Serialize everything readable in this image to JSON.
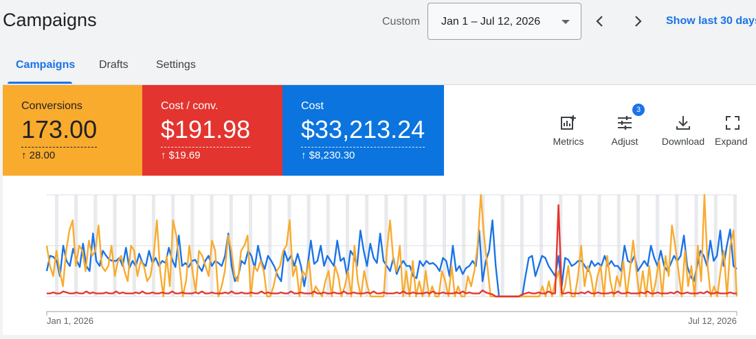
{
  "header": {
    "title": "Campaigns",
    "range_label": "Custom",
    "date_range": "Jan 1 – Jul 12, 2026",
    "show_last": "Show last 30 days"
  },
  "tabs": [
    {
      "label": "Campaigns",
      "active": true
    },
    {
      "label": "Drafts",
      "active": false
    },
    {
      "label": "Settings",
      "active": false
    }
  ],
  "scorecards": {
    "conversions": {
      "label": "Conversions",
      "value": "173.00",
      "delta": "↑ 28.00",
      "color": "#f9ab2e"
    },
    "cost_per_conv": {
      "label": "Cost / conv.",
      "value": "$191.98",
      "delta": "↑ $19.69",
      "color": "#e3342f"
    },
    "cost": {
      "label": "Cost",
      "value": "$33,213.24",
      "delta": "↑ $8,230.30",
      "color": "#0b74de"
    }
  },
  "toolbar": {
    "metrics": "Metrics",
    "adjust": "Adjust",
    "adjust_badge": "3",
    "download": "Download",
    "expand": "Expand"
  },
  "chart_data": {
    "type": "line",
    "x_start": "Jan 1, 2026",
    "x_end": "Jul 12, 2026",
    "grid": true,
    "series": [
      {
        "color": "#1a73e8",
        "values": [
          0.25,
          0.4,
          0.39,
          0.35,
          0.2,
          0.5,
          0.35,
          0.3,
          0.47,
          0.36,
          0.29,
          0.52,
          0.3,
          0.25,
          0.62,
          0.35,
          0.3,
          0.45,
          0.4,
          0.36,
          0.35,
          0.35,
          0.38,
          0.3,
          0.48,
          0.28,
          0.35,
          0.3,
          0.42,
          0.33,
          0.3,
          0.45,
          0.33,
          0.38,
          0.3,
          0.35,
          0.33,
          0.48,
          0.36,
          0.29,
          0.6,
          0.3,
          0.33,
          0.29,
          0.35,
          0.36,
          0.3,
          0.25,
          0.35,
          0.4,
          0.3,
          0.35,
          0.33,
          0.3,
          0.4,
          0.62,
          0.3,
          0.15,
          0.2,
          0.35,
          0.32,
          0.45,
          0.4,
          0.28,
          0.5,
          0.35,
          0.27,
          0.4,
          0.35,
          0.29,
          0.2,
          0.15,
          0.45,
          0.35,
          0.4,
          0.3,
          0.42,
          0.3,
          0.1,
          0.3,
          0.55,
          0.32,
          0.35,
          0.5,
          0.3,
          0.4,
          0.35,
          0.3,
          0.55,
          0.35,
          0.38,
          0.2,
          0.45,
          0.4,
          0.3,
          0.65,
          0.45,
          0.3,
          0.52,
          0.38,
          0.33,
          0.62,
          0.35,
          0.3,
          0.25,
          0.38,
          0.22,
          0.3,
          0.35,
          0.3,
          0.3,
          0.2,
          0.18,
          0.35,
          0.3,
          0.35,
          0.32,
          0.33,
          0.3,
          0.25,
          0.38,
          0.35,
          0.2,
          0.5,
          0.25,
          0.3,
          0.22,
          0.28,
          0.3,
          0.35,
          0.3,
          0.65,
          0.15,
          0.35,
          0.45,
          0.75,
          0.3,
          0.0,
          0.0,
          0.0,
          0.0,
          0.0,
          0.0,
          0.0,
          0.0,
          0.2,
          0.38,
          0.4,
          0.2,
          0.3,
          0.4,
          0.38,
          0.3,
          0.25,
          0.2,
          0.4,
          0.1,
          0.38,
          0.36,
          0.3,
          0.32,
          0.35,
          0.35,
          0.3,
          0.25,
          0.35,
          0.3,
          0.33,
          0.3,
          0.4,
          0.3,
          0.35,
          0.3,
          0.3,
          0.25,
          0.5,
          0.35,
          0.33,
          0.4,
          0.25,
          0.3,
          0.35,
          0.3,
          0.5,
          0.38,
          0.3,
          0.45,
          0.3,
          0.25,
          0.32,
          0.4,
          0.35,
          0.4,
          0.6,
          0.3,
          0.2,
          0.15,
          0.3,
          0.45,
          0.4,
          0.3,
          0.55,
          0.35,
          0.4,
          0.65,
          0.3,
          0.5,
          0.66,
          0.3,
          0.27
        ]
      },
      {
        "color": "#f9ab2e",
        "values": [
          0.5,
          0.3,
          0.2,
          0.45,
          0.25,
          0.1,
          0.45,
          0.65,
          0.75,
          0.3,
          0.5,
          0.45,
          0.25,
          0.55,
          0.4,
          0.45,
          0.7,
          0.3,
          0.25,
          0.3,
          0.5,
          0.2,
          0.35,
          0.4,
          0.25,
          0.15,
          0.5,
          0.45,
          0.2,
          0.35,
          0.3,
          0.15,
          0.2,
          0.4,
          0.75,
          0.25,
          0.0,
          0.4,
          0.1,
          0.75,
          0.6,
          0.3,
          0.0,
          0.15,
          0.5,
          0.25,
          0.05,
          0.45,
          0.4,
          0.3,
          0.2,
          0.55,
          0.45,
          0.0,
          0.1,
          0.25,
          0.6,
          0.45,
          0.2,
          0.15,
          0.45,
          0.5,
          0.6,
          0.0,
          0.3,
          0.25,
          0.35,
          0.25,
          0.0,
          0.0,
          0.1,
          0.25,
          0.3,
          0.45,
          0.5,
          0.75,
          0.2,
          0.3,
          0.0,
          0.25,
          0.2,
          0.35,
          0.0,
          0.1,
          0.05,
          0.0,
          0.15,
          0.25,
          0.0,
          0.3,
          0.2,
          0.0,
          0.1,
          0.25,
          0.0,
          0.5,
          0.15,
          0.0,
          0.25,
          0.1,
          0.0,
          0.0,
          0.0,
          0.0,
          0.0,
          0.45,
          0.75,
          0.35,
          0.25,
          0.5,
          0.0,
          0.25,
          0.0,
          0.35,
          0.0,
          0.15,
          0.0,
          0.25,
          0.0,
          0.1,
          0.0,
          0.0,
          0.25,
          0.15,
          0.0,
          0.3,
          0.0,
          0.1,
          0.0,
          0.0,
          0.2,
          0.1,
          0.25,
          0.5,
          1.0,
          0.6,
          0.3,
          0.0,
          0.0,
          0.0,
          0.0,
          0.0,
          0.0,
          0.0,
          0.0,
          0.0,
          0.0,
          0.0,
          0.0,
          0.0,
          0.0,
          0.0,
          0.0,
          0.1,
          0.0,
          0.15,
          0.0,
          0.15,
          0.25,
          0.0,
          0.1,
          0.3,
          0.0,
          0.0,
          0.2,
          0.5,
          0.1,
          0.3,
          0.2,
          0.0,
          0.2,
          0.3,
          0.0,
          0.4,
          0.15,
          0.0,
          0.2,
          0.1,
          0.35,
          0.0,
          0.25,
          0.55,
          0.25,
          0.0,
          0.25,
          0.0,
          0.3,
          0.0,
          0.15,
          0.35,
          0.0,
          0.4,
          0.2,
          0.7,
          0.5,
          0.25,
          0.0,
          0.45,
          0.1,
          0.3,
          0.0,
          0.5,
          0.15,
          1.0,
          0.3,
          0.0,
          0.1,
          0.0,
          0.25,
          0.45,
          0.0,
          0.5,
          0.65,
          0.0
        ]
      },
      {
        "color": "#e3342f",
        "values": [
          0.03,
          0.03,
          0.04,
          0.03,
          0.03,
          0.05,
          0.04,
          0.03,
          0.03,
          0.04,
          0.03,
          0.03,
          0.05,
          0.03,
          0.04,
          0.03,
          0.03,
          0.03,
          0.04,
          0.03,
          0.03,
          0.05,
          0.03,
          0.04,
          0.03,
          0.03,
          0.03,
          0.04,
          0.03,
          0.05,
          0.03,
          0.03,
          0.04,
          0.03,
          0.03,
          0.04,
          0.03,
          0.03,
          0.05,
          0.03,
          0.03,
          0.04,
          0.03,
          0.03,
          0.03,
          0.04,
          0.03,
          0.05,
          0.03,
          0.03,
          0.04,
          0.03,
          0.03,
          0.03,
          0.04,
          0.03,
          0.05,
          0.03,
          0.03,
          0.04,
          0.03,
          0.03,
          0.04,
          0.03,
          0.03,
          0.05,
          0.03,
          0.04,
          0.03,
          0.03,
          0.03,
          0.04,
          0.03,
          0.03,
          0.05,
          0.03,
          0.03,
          0.04,
          0.03,
          0.03,
          0.03,
          0.05,
          0.03,
          0.03,
          0.04,
          0.03,
          0.03,
          0.04,
          0.03,
          0.03,
          0.05,
          0.03,
          0.03,
          0.04,
          0.03,
          0.03,
          0.03,
          0.04,
          0.03,
          0.05,
          0.03,
          0.03,
          0.04,
          0.03,
          0.03,
          0.03,
          0.04,
          0.03,
          0.05,
          0.03,
          0.03,
          0.04,
          0.03,
          0.03,
          0.03,
          0.04,
          0.03,
          0.05,
          0.03,
          0.03,
          0.04,
          0.03,
          0.03,
          0.03,
          0.04,
          0.03,
          0.05,
          0.03,
          0.04,
          0.03,
          0.03,
          0.03,
          0.06,
          0.04,
          0.03,
          0.02,
          0.0,
          0.0,
          0.0,
          0.0,
          0.0,
          0.0,
          0.0,
          0.0,
          0.02,
          0.03,
          0.04,
          0.03,
          0.03,
          0.04,
          0.03,
          0.03,
          0.05,
          0.03,
          0.03,
          0.9,
          0.03,
          0.03,
          0.04,
          0.03,
          0.03,
          0.03,
          0.04,
          0.03,
          0.05,
          0.03,
          0.03,
          0.04,
          0.03,
          0.03,
          0.03,
          0.04,
          0.03,
          0.05,
          0.03,
          0.03,
          0.04,
          0.03,
          0.03,
          0.03,
          0.04,
          0.03,
          0.05,
          0.03,
          0.03,
          0.04,
          0.03,
          0.03,
          0.03,
          0.04,
          0.03,
          0.05,
          0.03,
          0.03,
          0.04,
          0.03,
          0.03,
          0.03,
          0.04,
          0.03,
          0.05,
          0.03,
          0.03,
          0.04,
          0.03,
          0.03,
          0.03,
          0.04,
          0.03,
          0.03
        ]
      }
    ]
  }
}
